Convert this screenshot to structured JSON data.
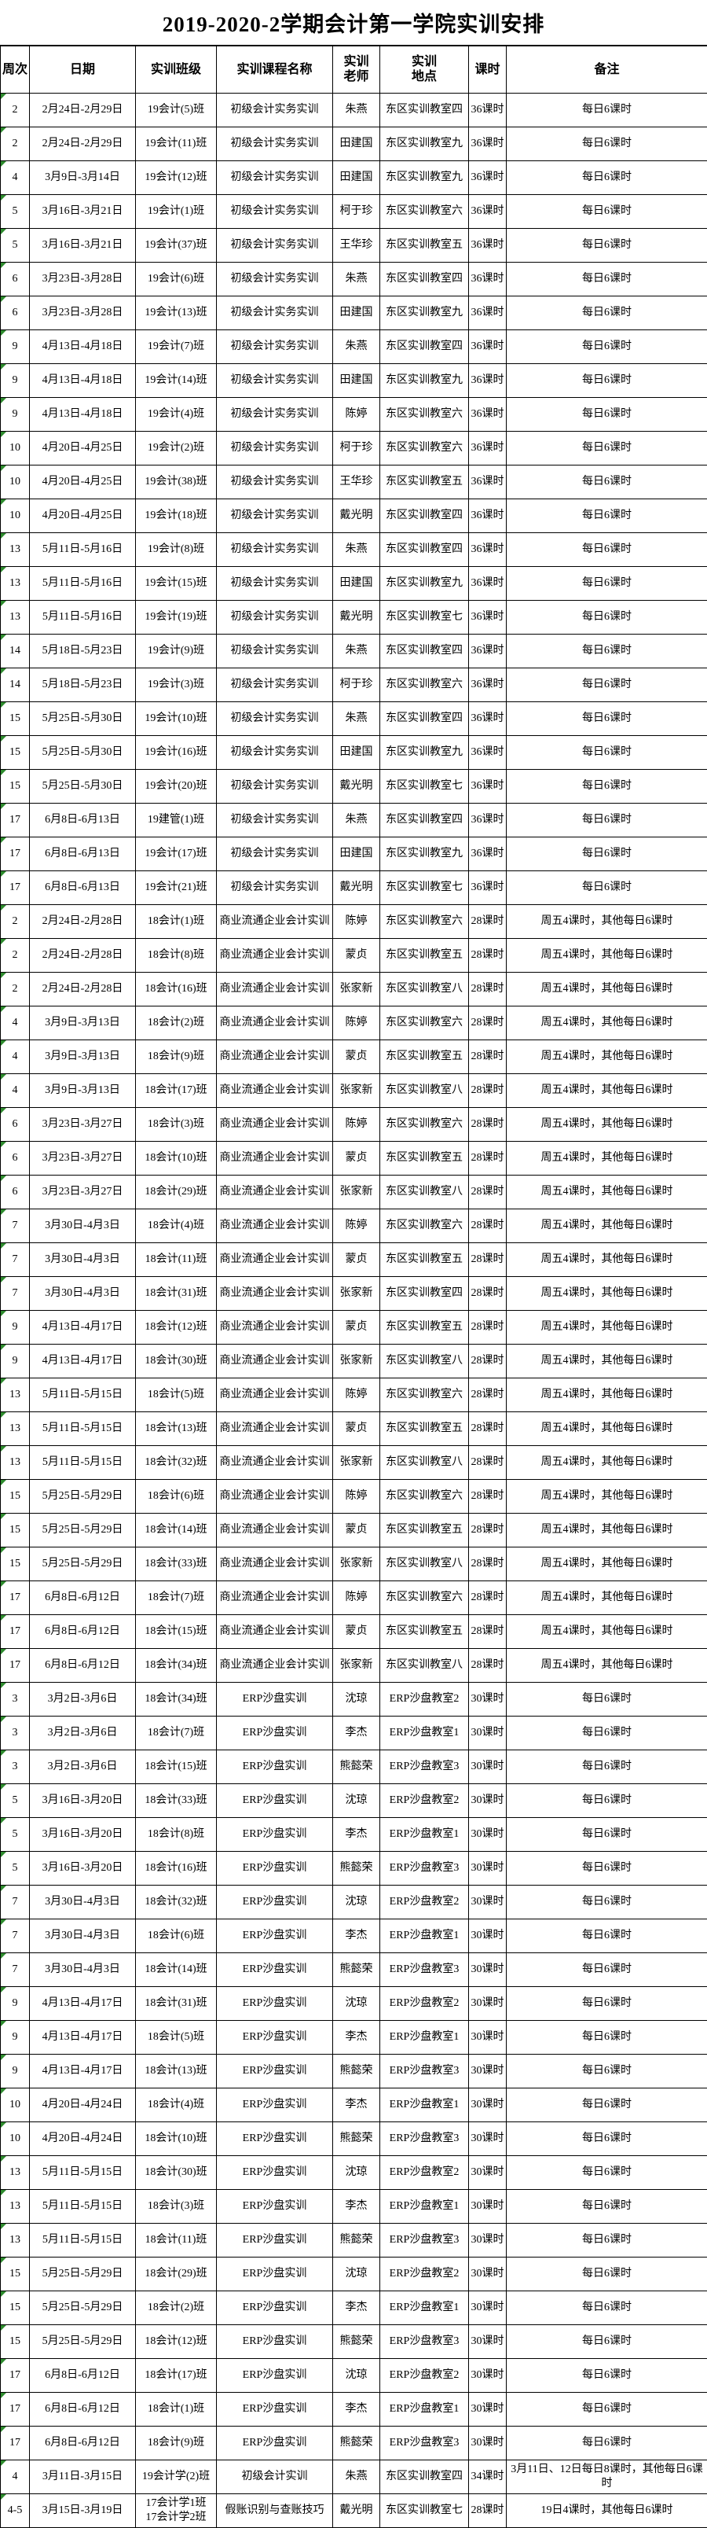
{
  "title": "2019-2020-2学期会计第一学院实训安排",
  "colors": {
    "background": "#ffffff",
    "text": "#000000",
    "border": "#000000",
    "error_triangle_green": "#2e8b2e"
  },
  "table": {
    "headers": [
      "周次",
      "日期",
      "实训班级",
      "实训课程名称",
      "实训\n老师",
      "实训\n地点",
      "课时",
      "备注"
    ],
    "rows": [
      [
        "2",
        "2月24日-2月29日",
        "19会计(5)班",
        "初级会计实务实训",
        "朱燕",
        "东区实训教室四",
        "36课时",
        "每日6课时"
      ],
      [
        "2",
        "2月24日-2月29日",
        "19会计(11)班",
        "初级会计实务实训",
        "田建国",
        "东区实训教室九",
        "36课时",
        "每日6课时"
      ],
      [
        "4",
        "3月9日-3月14日",
        "19会计(12)班",
        "初级会计实务实训",
        "田建国",
        "东区实训教室九",
        "36课时",
        "每日6课时"
      ],
      [
        "5",
        "3月16日-3月21日",
        "19会计(1)班",
        "初级会计实务实训",
        "柯于珍",
        "东区实训教室六",
        "36课时",
        "每日6课时"
      ],
      [
        "5",
        "3月16日-3月21日",
        "19会计(37)班",
        "初级会计实务实训",
        "王华珍",
        "东区实训教室五",
        "36课时",
        "每日6课时"
      ],
      [
        "6",
        "3月23日-3月28日",
        "19会计(6)班",
        "初级会计实务实训",
        "朱燕",
        "东区实训教室四",
        "36课时",
        "每日6课时"
      ],
      [
        "6",
        "3月23日-3月28日",
        "19会计(13)班",
        "初级会计实务实训",
        "田建国",
        "东区实训教室九",
        "36课时",
        "每日6课时"
      ],
      [
        "9",
        "4月13日-4月18日",
        "19会计(7)班",
        "初级会计实务实训",
        "朱燕",
        "东区实训教室四",
        "36课时",
        "每日6课时"
      ],
      [
        "9",
        "4月13日-4月18日",
        "19会计(14)班",
        "初级会计实务实训",
        "田建国",
        "东区实训教室九",
        "36课时",
        "每日6课时"
      ],
      [
        "9",
        "4月13日-4月18日",
        "19会计(4)班",
        "初级会计实务实训",
        "陈婷",
        "东区实训教室六",
        "36课时",
        "每日6课时"
      ],
      [
        "10",
        "4月20日-4月25日",
        "19会计(2)班",
        "初级会计实务实训",
        "柯于珍",
        "东区实训教室六",
        "36课时",
        "每日6课时"
      ],
      [
        "10",
        "4月20日-4月25日",
        "19会计(38)班",
        "初级会计实务实训",
        "王华珍",
        "东区实训教室五",
        "36课时",
        "每日6课时"
      ],
      [
        "10",
        "4月20日-4月25日",
        "19会计(18)班",
        "初级会计实务实训",
        "戴光明",
        "东区实训教室四",
        "36课时",
        "每日6课时"
      ],
      [
        "13",
        "5月11日-5月16日",
        "19会计(8)班",
        "初级会计实务实训",
        "朱燕",
        "东区实训教室四",
        "36课时",
        "每日6课时"
      ],
      [
        "13",
        "5月11日-5月16日",
        "19会计(15)班",
        "初级会计实务实训",
        "田建国",
        "东区实训教室九",
        "36课时",
        "每日6课时"
      ],
      [
        "13",
        "5月11日-5月16日",
        "19会计(19)班",
        "初级会计实务实训",
        "戴光明",
        "东区实训教室七",
        "36课时",
        "每日6课时"
      ],
      [
        "14",
        "5月18日-5月23日",
        "19会计(9)班",
        "初级会计实务实训",
        "朱燕",
        "东区实训教室四",
        "36课时",
        "每日6课时"
      ],
      [
        "14",
        "5月18日-5月23日",
        "19会计(3)班",
        "初级会计实务实训",
        "柯于珍",
        "东区实训教室六",
        "36课时",
        "每日6课时"
      ],
      [
        "15",
        "5月25日-5月30日",
        "19会计(10)班",
        "初级会计实务实训",
        "朱燕",
        "东区实训教室四",
        "36课时",
        "每日6课时"
      ],
      [
        "15",
        "5月25日-5月30日",
        "19会计(16)班",
        "初级会计实务实训",
        "田建国",
        "东区实训教室九",
        "36课时",
        "每日6课时"
      ],
      [
        "15",
        "5月25日-5月30日",
        "19会计(20)班",
        "初级会计实务实训",
        "戴光明",
        "东区实训教室七",
        "36课时",
        "每日6课时"
      ],
      [
        "17",
        "6月8日-6月13日",
        "19建管(1)班",
        "初级会计实务实训",
        "朱燕",
        "东区实训教室四",
        "36课时",
        "每日6课时"
      ],
      [
        "17",
        "6月8日-6月13日",
        "19会计(17)班",
        "初级会计实务实训",
        "田建国",
        "东区实训教室九",
        "36课时",
        "每日6课时"
      ],
      [
        "17",
        "6月8日-6月13日",
        "19会计(21)班",
        "初级会计实务实训",
        "戴光明",
        "东区实训教室七",
        "36课时",
        "每日6课时"
      ],
      [
        "2",
        "2月24日-2月28日",
        "18会计(1)班",
        "商业流通企业会计实训",
        "陈婷",
        "东区实训教室六",
        "28课时",
        "周五4课时，其他每日6课时"
      ],
      [
        "2",
        "2月24日-2月28日",
        "18会计(8)班",
        "商业流通企业会计实训",
        "蒙贞",
        "东区实训教室五",
        "28课时",
        "周五4课时，其他每日6课时"
      ],
      [
        "2",
        "2月24日-2月28日",
        "18会计(16)班",
        "商业流通企业会计实训",
        "张家新",
        "东区实训教室八",
        "28课时",
        "周五4课时，其他每日6课时"
      ],
      [
        "4",
        "3月9日-3月13日",
        "18会计(2)班",
        "商业流通企业会计实训",
        "陈婷",
        "东区实训教室六",
        "28课时",
        "周五4课时，其他每日6课时"
      ],
      [
        "4",
        "3月9日-3月13日",
        "18会计(9)班",
        "商业流通企业会计实训",
        "蒙贞",
        "东区实训教室五",
        "28课时",
        "周五4课时，其他每日6课时"
      ],
      [
        "4",
        "3月9日-3月13日",
        "18会计(17)班",
        "商业流通企业会计实训",
        "张家新",
        "东区实训教室八",
        "28课时",
        "周五4课时，其他每日6课时"
      ],
      [
        "6",
        "3月23日-3月27日",
        "18会计(3)班",
        "商业流通企业会计实训",
        "陈婷",
        "东区实训教室六",
        "28课时",
        "周五4课时，其他每日6课时"
      ],
      [
        "6",
        "3月23日-3月27日",
        "18会计(10)班",
        "商业流通企业会计实训",
        "蒙贞",
        "东区实训教室五",
        "28课时",
        "周五4课时，其他每日6课时"
      ],
      [
        "6",
        "3月23日-3月27日",
        "18会计(29)班",
        "商业流通企业会计实训",
        "张家新",
        "东区实训教室八",
        "28课时",
        "周五4课时，其他每日6课时"
      ],
      [
        "7",
        "3月30日-4月3日",
        "18会计(4)班",
        "商业流通企业会计实训",
        "陈婷",
        "东区实训教室六",
        "28课时",
        "周五4课时，其他每日6课时"
      ],
      [
        "7",
        "3月30日-4月3日",
        "18会计(11)班",
        "商业流通企业会计实训",
        "蒙贞",
        "东区实训教室五",
        "28课时",
        "周五4课时，其他每日6课时"
      ],
      [
        "7",
        "3月30日-4月3日",
        "18会计(31)班",
        "商业流通企业会计实训",
        "张家新",
        "东区实训教室四",
        "28课时",
        "周五4课时，其他每日6课时"
      ],
      [
        "9",
        "4月13日-4月17日",
        "18会计(12)班",
        "商业流通企业会计实训",
        "蒙贞",
        "东区实训教室五",
        "28课时",
        "周五4课时，其他每日6课时"
      ],
      [
        "9",
        "4月13日-4月17日",
        "18会计(30)班",
        "商业流通企业会计实训",
        "张家新",
        "东区实训教室八",
        "28课时",
        "周五4课时，其他每日6课时"
      ],
      [
        "13",
        "5月11日-5月15日",
        "18会计(5)班",
        "商业流通企业会计实训",
        "陈婷",
        "东区实训教室六",
        "28课时",
        "周五4课时，其他每日6课时"
      ],
      [
        "13",
        "5月11日-5月15日",
        "18会计(13)班",
        "商业流通企业会计实训",
        "蒙贞",
        "东区实训教室五",
        "28课时",
        "周五4课时，其他每日6课时"
      ],
      [
        "13",
        "5月11日-5月15日",
        "18会计(32)班",
        "商业流通企业会计实训",
        "张家新",
        "东区实训教室八",
        "28课时",
        "周五4课时，其他每日6课时"
      ],
      [
        "15",
        "5月25日-5月29日",
        "18会计(6)班",
        "商业流通企业会计实训",
        "陈婷",
        "东区实训教室六",
        "28课时",
        "周五4课时，其他每日6课时"
      ],
      [
        "15",
        "5月25日-5月29日",
        "18会计(14)班",
        "商业流通企业会计实训",
        "蒙贞",
        "东区实训教室五",
        "28课时",
        "周五4课时，其他每日6课时"
      ],
      [
        "15",
        "5月25日-5月29日",
        "18会计(33)班",
        "商业流通企业会计实训",
        "张家新",
        "东区实训教室八",
        "28课时",
        "周五4课时，其他每日6课时"
      ],
      [
        "17",
        "6月8日-6月12日",
        "18会计(7)班",
        "商业流通企业会计实训",
        "陈婷",
        "东区实训教室六",
        "28课时",
        "周五4课时，其他每日6课时"
      ],
      [
        "17",
        "6月8日-6月12日",
        "18会计(15)班",
        "商业流通企业会计实训",
        "蒙贞",
        "东区实训教室五",
        "28课时",
        "周五4课时，其他每日6课时"
      ],
      [
        "17",
        "6月8日-6月12日",
        "18会计(34)班",
        "商业流通企业会计实训",
        "张家新",
        "东区实训教室八",
        "28课时",
        "周五4课时，其他每日6课时"
      ],
      [
        "3",
        "3月2日-3月6日",
        "18会计(34)班",
        "ERP沙盘实训",
        "沈琼",
        "ERP沙盘教室2",
        "30课时",
        "每日6课时"
      ],
      [
        "3",
        "3月2日-3月6日",
        "18会计(7)班",
        "ERP沙盘实训",
        "李杰",
        "ERP沙盘教室1",
        "30课时",
        "每日6课时"
      ],
      [
        "3",
        "3月2日-3月6日",
        "18会计(15)班",
        "ERP沙盘实训",
        "熊懿荣",
        "ERP沙盘教室3",
        "30课时",
        "每日6课时"
      ],
      [
        "5",
        "3月16日-3月20日",
        "18会计(33)班",
        "ERP沙盘实训",
        "沈琼",
        "ERP沙盘教室2",
        "30课时",
        "每日6课时"
      ],
      [
        "5",
        "3月16日-3月20日",
        "18会计(8)班",
        "ERP沙盘实训",
        "李杰",
        "ERP沙盘教室1",
        "30课时",
        "每日6课时"
      ],
      [
        "5",
        "3月16日-3月20日",
        "18会计(16)班",
        "ERP沙盘实训",
        "熊懿荣",
        "ERP沙盘教室3",
        "30课时",
        "每日6课时"
      ],
      [
        "7",
        "3月30日-4月3日",
        "18会计(32)班",
        "ERP沙盘实训",
        "沈琼",
        "ERP沙盘教室2",
        "30课时",
        "每日6课时"
      ],
      [
        "7",
        "3月30日-4月3日",
        "18会计(6)班",
        "ERP沙盘实训",
        "李杰",
        "ERP沙盘教室1",
        "30课时",
        "每日6课时"
      ],
      [
        "7",
        "3月30日-4月3日",
        "18会计(14)班",
        "ERP沙盘实训",
        "熊懿荣",
        "ERP沙盘教室3",
        "30课时",
        "每日6课时"
      ],
      [
        "9",
        "4月13日-4月17日",
        "18会计(31)班",
        "ERP沙盘实训",
        "沈琼",
        "ERP沙盘教室2",
        "30课时",
        "每日6课时"
      ],
      [
        "9",
        "4月13日-4月17日",
        "18会计(5)班",
        "ERP沙盘实训",
        "李杰",
        "ERP沙盘教室1",
        "30课时",
        "每日6课时"
      ],
      [
        "9",
        "4月13日-4月17日",
        "18会计(13)班",
        "ERP沙盘实训",
        "熊懿荣",
        "ERP沙盘教室3",
        "30课时",
        "每日6课时"
      ],
      [
        "10",
        "4月20日-4月24日",
        "18会计(4)班",
        "ERP沙盘实训",
        "李杰",
        "ERP沙盘教室1",
        "30课时",
        "每日6课时"
      ],
      [
        "10",
        "4月20日-4月24日",
        "18会计(10)班",
        "ERP沙盘实训",
        "熊懿荣",
        "ERP沙盘教室3",
        "30课时",
        "每日6课时"
      ],
      [
        "13",
        "5月11日-5月15日",
        "18会计(30)班",
        "ERP沙盘实训",
        "沈琼",
        "ERP沙盘教室2",
        "30课时",
        "每日6课时"
      ],
      [
        "13",
        "5月11日-5月15日",
        "18会计(3)班",
        "ERP沙盘实训",
        "李杰",
        "ERP沙盘教室1",
        "30课时",
        "每日6课时"
      ],
      [
        "13",
        "5月11日-5月15日",
        "18会计(11)班",
        "ERP沙盘实训",
        "熊懿荣",
        "ERP沙盘教室3",
        "30课时",
        "每日6课时"
      ],
      [
        "15",
        "5月25日-5月29日",
        "18会计(29)班",
        "ERP沙盘实训",
        "沈琼",
        "ERP沙盘教室2",
        "30课时",
        "每日6课时"
      ],
      [
        "15",
        "5月25日-5月29日",
        "18会计(2)班",
        "ERP沙盘实训",
        "李杰",
        "ERP沙盘教室1",
        "30课时",
        "每日6课时"
      ],
      [
        "15",
        "5月25日-5月29日",
        "18会计(12)班",
        "ERP沙盘实训",
        "熊懿荣",
        "ERP沙盘教室3",
        "30课时",
        "每日6课时"
      ],
      [
        "17",
        "6月8日-6月12日",
        "18会计(17)班",
        "ERP沙盘实训",
        "沈琼",
        "ERP沙盘教室2",
        "30课时",
        "每日6课时"
      ],
      [
        "17",
        "6月8日-6月12日",
        "18会计(1)班",
        "ERP沙盘实训",
        "李杰",
        "ERP沙盘教室1",
        "30课时",
        "每日6课时"
      ],
      [
        "17",
        "6月8日-6月12日",
        "18会计(9)班",
        "ERP沙盘实训",
        "熊懿荣",
        "ERP沙盘教室3",
        "30课时",
        "每日6课时"
      ],
      [
        "4",
        "3月11日-3月15日",
        "19会计学(2)班",
        "初级会计实训",
        "朱燕",
        "东区实训教室四",
        "34课时",
        "3月11日、12日每日8课时，其他每日6课时"
      ],
      [
        "4-5",
        "3月15日-3月19日",
        "17会计学1班\n17会计学2班",
        "假账识别与查账技巧",
        "戴光明",
        "东区实训教室七",
        "28课时",
        "19日4课时，其他每日6课时"
      ]
    ]
  }
}
